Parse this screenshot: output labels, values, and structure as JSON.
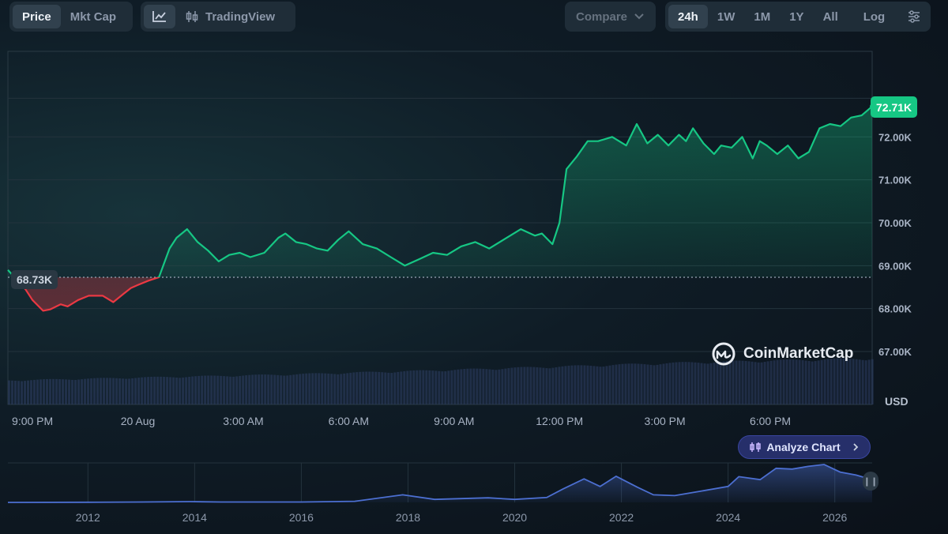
{
  "toolbar": {
    "metric_tabs": [
      {
        "label": "Price",
        "active": true
      },
      {
        "label": "Mkt Cap",
        "active": false
      }
    ],
    "line_chart_icon": "line-chart-icon",
    "candles_icon": "candlestick-icon",
    "tradingview_label": "TradingView",
    "compare_label": "Compare",
    "ranges": [
      {
        "label": "24h",
        "active": true
      },
      {
        "label": "1W",
        "active": false
      },
      {
        "label": "1M",
        "active": false
      },
      {
        "label": "1Y",
        "active": false
      },
      {
        "label": "All",
        "active": false
      }
    ],
    "log_label": "Log",
    "settings_icon": "settings-sliders-icon"
  },
  "colors": {
    "up": "#16c784",
    "down": "#ea3943",
    "overview": "#4c6fd1",
    "volume": "#2f3f66"
  },
  "price_chart": {
    "open_badge": "68.73K",
    "last_badge": "72.71K",
    "currency_label": "USD",
    "watermark": "CoinMarketCap",
    "watermark_icon": "coinmarketcap-logo-icon"
  },
  "analyze_button": {
    "label": "Analyze Chart",
    "icon": "candles-icon",
    "chevron": "chevron-right-icon"
  },
  "chart_data": [
    {
      "type": "line",
      "ylabel": "USD",
      "ylim": [
        66500,
        73000
      ],
      "yticks": [
        "72.00K",
        "71.00K",
        "70.00K",
        "69.00K",
        "68.00K",
        "67.00K"
      ],
      "ytick_values": [
        72000,
        71000,
        70000,
        69000,
        68000,
        67000
      ],
      "xticks": [
        "9:00 PM",
        "20 Aug",
        "3:00 AM",
        "6:00 AM",
        "9:00 AM",
        "12:00 PM",
        "3:00 PM",
        "6:00 PM"
      ],
      "xtick_hours": [
        0,
        3,
        6,
        9,
        12,
        15,
        18,
        21
      ],
      "xlim": [
        -0.7,
        23.9
      ],
      "open_price": 68730,
      "last_price": 72710,
      "series": [
        {
          "x": [
            -0.7,
            -0.2,
            0.0,
            0.3,
            0.5,
            0.8,
            1.0,
            1.3,
            1.6,
            2.0,
            2.3,
            2.6,
            2.8,
            3.0,
            3.3,
            3.6,
            3.9,
            4.1,
            4.4,
            4.7,
            5.0,
            5.3,
            5.6,
            5.9,
            6.2,
            6.6,
            7.0,
            7.2,
            7.5,
            7.8,
            8.1,
            8.4,
            8.7,
            9.0,
            9.4,
            9.8,
            10.2,
            10.6,
            11.0,
            11.4,
            11.8,
            12.2,
            12.6,
            13.0,
            13.4,
            13.9,
            14.3,
            14.5,
            14.8,
            15.0,
            15.2,
            15.5,
            15.8,
            16.1,
            16.5,
            16.9,
            17.2,
            17.5,
            17.8,
            18.1,
            18.4,
            18.6,
            18.8,
            19.1,
            19.4,
            19.6,
            19.9,
            20.2,
            20.5,
            20.7,
            20.9,
            21.2,
            21.5,
            21.8,
            22.1,
            22.4,
            22.7,
            23.0,
            23.3,
            23.6,
            23.9
          ],
          "y": [
            68900,
            68450,
            68200,
            67950,
            67980,
            68100,
            68050,
            68200,
            68300,
            68300,
            68150,
            68350,
            68480,
            68550,
            68650,
            68730,
            69400,
            69650,
            69850,
            69550,
            69350,
            69100,
            69250,
            69300,
            69200,
            69300,
            69650,
            69750,
            69550,
            69500,
            69400,
            69350,
            69600,
            69800,
            69500,
            69400,
            69200,
            69000,
            69150,
            69300,
            69250,
            69450,
            69550,
            69400,
            69600,
            69850,
            69700,
            69750,
            69500,
            70000,
            71250,
            71550,
            71900,
            71900,
            72000,
            71800,
            72300,
            71850,
            72050,
            71800,
            72050,
            71900,
            72200,
            71850,
            71600,
            71800,
            71750,
            72000,
            71500,
            71900,
            71800,
            71600,
            71800,
            71500,
            71650,
            72200,
            72300,
            72250,
            72450,
            72500,
            72710
          ]
        }
      ],
      "volume": {
        "x": [
          -0.7,
          3.0,
          7.0,
          11.0,
          15.0,
          19.0,
          23.9
        ],
        "values": [
          0.5,
          0.56,
          0.62,
          0.7,
          0.79,
          0.88,
          0.96
        ]
      }
    },
    {
      "type": "area",
      "xticks": [
        "2012",
        "2014",
        "2016",
        "2018",
        "2020",
        "2022",
        "2024",
        "2026"
      ],
      "xtick_years": [
        2012,
        2014,
        2016,
        2018,
        2020,
        2022,
        2024,
        2026
      ],
      "xlim": [
        2010.5,
        2026.7
      ],
      "series": [
        {
          "x": [
            2010.5,
            2012.0,
            2013.0,
            2013.9,
            2014.5,
            2016.0,
            2017.0,
            2017.9,
            2018.5,
            2019.5,
            2020.0,
            2020.6,
            2020.9,
            2021.3,
            2021.6,
            2021.9,
            2022.3,
            2022.6,
            2023.0,
            2023.5,
            2024.0,
            2024.2,
            2024.6,
            2024.9,
            2025.2,
            2025.5,
            2025.8,
            2026.1,
            2026.4,
            2026.7
          ],
          "y": [
            0.0,
            0.005,
            0.01,
            0.02,
            0.01,
            0.01,
            0.03,
            0.2,
            0.08,
            0.12,
            0.08,
            0.13,
            0.35,
            0.62,
            0.42,
            0.69,
            0.4,
            0.2,
            0.18,
            0.3,
            0.42,
            0.68,
            0.6,
            0.9,
            0.88,
            0.95,
            1.0,
            0.8,
            0.72,
            0.6
          ]
        }
      ]
    }
  ]
}
